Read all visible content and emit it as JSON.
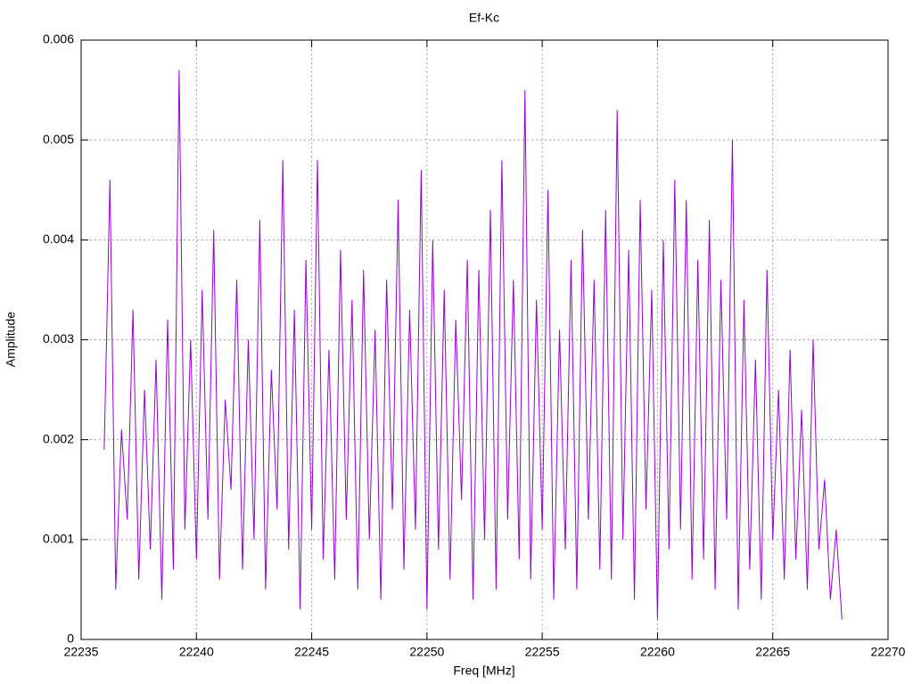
{
  "chart_data": {
    "type": "line",
    "title": "Ef-Kc",
    "x_label": "Freq [MHz]",
    "y_label": "Amplitude",
    "xlim": [
      22235,
      22270
    ],
    "xticks": [
      22235,
      22240,
      22245,
      22250,
      22255,
      22260,
      22265,
      22270
    ],
    "ylim": [
      0,
      0.006
    ],
    "yticks": [
      0,
      0.001,
      0.002,
      0.003,
      0.004,
      0.005,
      0.006
    ],
    "grid": true,
    "x": [
      22236,
      22236.25,
      22236.5,
      22236.75,
      22237,
      22237.25,
      22237.5,
      22237.75,
      22238,
      22238.25,
      22238.5,
      22238.75,
      22239,
      22239.25,
      22239.5,
      22239.75,
      22240,
      22240.25,
      22240.5,
      22240.75,
      22241,
      22241.25,
      22241.5,
      22241.75,
      22242,
      22242.25,
      22242.5,
      22242.75,
      22243,
      22243.25,
      22243.5,
      22243.75,
      22244,
      22244.25,
      22244.5,
      22244.75,
      22245,
      22245.25,
      22245.5,
      22245.75,
      22246,
      22246.25,
      22246.5,
      22246.75,
      22247,
      22247.25,
      22247.5,
      22247.75,
      22248,
      22248.25,
      22248.5,
      22248.75,
      22249,
      22249.25,
      22249.5,
      22249.75,
      22250,
      22250.25,
      22250.5,
      22250.75,
      22251,
      22251.25,
      22251.5,
      22251.75,
      22252,
      22252.25,
      22252.5,
      22252.75,
      22253,
      22253.25,
      22253.5,
      22253.75,
      22254,
      22254.25,
      22254.5,
      22254.75,
      22255,
      22255.25,
      22255.5,
      22255.75,
      22256,
      22256.25,
      22256.5,
      22256.75,
      22257,
      22257.25,
      22257.5,
      22257.75,
      22258,
      22258.25,
      22258.5,
      22258.75,
      22259,
      22259.25,
      22259.5,
      22259.75,
      22260,
      22260.25,
      22260.5,
      22260.75,
      22261,
      22261.25,
      22261.5,
      22261.75,
      22262,
      22262.25,
      22262.5,
      22262.75,
      22263,
      22263.25,
      22263.5,
      22263.75,
      22264,
      22264.25,
      22264.5,
      22264.75,
      22265,
      22265.25,
      22265.5,
      22265.75,
      22266,
      22266.25,
      22266.5,
      22266.75,
      22267,
      22267.25,
      22267.5,
      22267.75,
      22268
    ],
    "series": [
      {
        "color": "#9400d3",
        "values": [
          0.0019,
          0.0046,
          0.0005,
          0.0021,
          0.0012,
          0.0033,
          0.0006,
          0.0025,
          0.0009,
          0.0028,
          0.0004,
          0.0032,
          0.0007,
          0.0057,
          0.0011,
          0.003,
          0.0008,
          0.0035,
          0.0012,
          0.0041,
          0.0006,
          0.0024,
          0.0015,
          0.0036,
          0.0007,
          0.003,
          0.001,
          0.0042,
          0.0005,
          0.0027,
          0.0013,
          0.0048,
          0.0009,
          0.0033,
          0.0003,
          0.0038,
          0.0011,
          0.0048,
          0.0008,
          0.0029,
          0.0006,
          0.0039,
          0.0012,
          0.0034,
          0.0005,
          0.0037,
          0.001,
          0.0031,
          0.0004,
          0.0036,
          0.0013,
          0.0044,
          0.0007,
          0.0033,
          0.0011,
          0.0047,
          0.0003,
          0.004,
          0.0009,
          0.0035,
          0.0006,
          0.0032,
          0.0014,
          0.0038,
          0.0004,
          0.0037,
          0.001,
          0.0043,
          0.0005,
          0.0048,
          0.0012,
          0.0036,
          0.0008,
          0.0055,
          0.0006,
          0.0034,
          0.0011,
          0.0045,
          0.0004,
          0.0031,
          0.0009,
          0.0038,
          0.0005,
          0.0041,
          0.0012,
          0.0036,
          0.0007,
          0.0043,
          0.0006,
          0.0053,
          0.001,
          0.0039,
          0.0004,
          0.0044,
          0.0013,
          0.0035,
          0.0002,
          0.004,
          0.0009,
          0.0046,
          0.0011,
          0.0044,
          0.0006,
          0.0038,
          0.0008,
          0.0042,
          0.0005,
          0.0036,
          0.0012,
          0.005,
          0.0003,
          0.0034,
          0.0007,
          0.0028,
          0.0004,
          0.0037,
          0.001,
          0.0025,
          0.0006,
          0.0029,
          0.0008,
          0.0023,
          0.0005,
          0.003,
          0.0009,
          0.0016,
          0.0004,
          0.0011,
          0.0002
        ]
      }
    ]
  }
}
